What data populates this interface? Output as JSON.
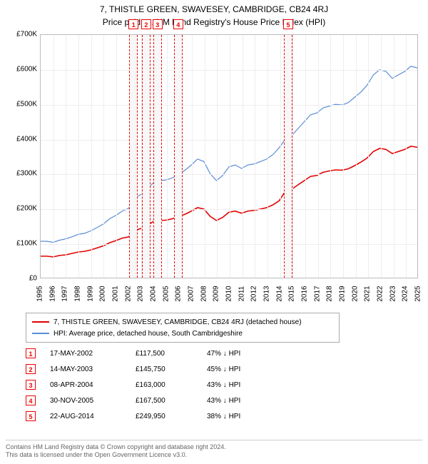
{
  "title": "7, THISTLE GREEN, SWAVESEY, CAMBRIDGE, CB24 4RJ",
  "subtitle": "Price paid vs. HM Land Registry's House Price Index (HPI)",
  "chart": {
    "type": "line",
    "background_color": "#ffffff",
    "grid_color": "#eeeeee",
    "axis_color": "#bbbbbb",
    "x": {
      "min": 1995,
      "max": 2025,
      "tick_step": 1,
      "labels": [
        "1995",
        "1996",
        "1997",
        "1998",
        "1999",
        "2000",
        "2001",
        "2002",
        "2003",
        "2004",
        "2005",
        "2006",
        "2007",
        "2008",
        "2009",
        "2010",
        "2011",
        "2012",
        "2013",
        "2014",
        "2015",
        "2016",
        "2017",
        "2018",
        "2019",
        "2020",
        "2021",
        "2022",
        "2023",
        "2024",
        "2025"
      ]
    },
    "y": {
      "min": 0,
      "max": 700000,
      "tick_step": 100000,
      "labels": [
        "£0",
        "£100K",
        "£200K",
        "£300K",
        "£400K",
        "£500K",
        "£600K",
        "£700K"
      ]
    },
    "series": [
      {
        "name": "HPI: Average price, detached house, South Cambridgeshire",
        "color": "#5b8dd6",
        "width": 1.2,
        "points": [
          [
            1995,
            105000
          ],
          [
            1995.5,
            105000
          ],
          [
            1996,
            102000
          ],
          [
            1996.5,
            108000
          ],
          [
            1997,
            112000
          ],
          [
            1997.5,
            118000
          ],
          [
            1998,
            125000
          ],
          [
            1998.5,
            128000
          ],
          [
            1999,
            135000
          ],
          [
            1999.5,
            145000
          ],
          [
            2000,
            155000
          ],
          [
            2000.5,
            170000
          ],
          [
            2001,
            180000
          ],
          [
            2001.5,
            192000
          ],
          [
            2002,
            200000
          ],
          [
            2002.5,
            230000
          ],
          [
            2003,
            240000
          ],
          [
            2003.5,
            255000
          ],
          [
            2004,
            275000
          ],
          [
            2004.5,
            280000
          ],
          [
            2005,
            282000
          ],
          [
            2005.5,
            288000
          ],
          [
            2006,
            298000
          ],
          [
            2006.5,
            310000
          ],
          [
            2007,
            325000
          ],
          [
            2007.5,
            342000
          ],
          [
            2008,
            335000
          ],
          [
            2008.5,
            300000
          ],
          [
            2009,
            280000
          ],
          [
            2009.5,
            295000
          ],
          [
            2010,
            320000
          ],
          [
            2010.5,
            325000
          ],
          [
            2011,
            315000
          ],
          [
            2011.5,
            325000
          ],
          [
            2012,
            328000
          ],
          [
            2012.5,
            335000
          ],
          [
            2013,
            342000
          ],
          [
            2013.5,
            355000
          ],
          [
            2014,
            375000
          ],
          [
            2014.5,
            400000
          ],
          [
            2015,
            410000
          ],
          [
            2015.5,
            430000
          ],
          [
            2016,
            450000
          ],
          [
            2016.5,
            470000
          ],
          [
            2017,
            475000
          ],
          [
            2017.5,
            490000
          ],
          [
            2018,
            495000
          ],
          [
            2018.5,
            500000
          ],
          [
            2019,
            498000
          ],
          [
            2019.5,
            505000
          ],
          [
            2020,
            520000
          ],
          [
            2020.5,
            535000
          ],
          [
            2021,
            555000
          ],
          [
            2021.5,
            585000
          ],
          [
            2022,
            600000
          ],
          [
            2022.5,
            595000
          ],
          [
            2023,
            575000
          ],
          [
            2023.5,
            585000
          ],
          [
            2024,
            595000
          ],
          [
            2024.5,
            610000
          ],
          [
            2025,
            605000
          ]
        ]
      },
      {
        "name": "7, THISTLE GREEN, SWAVESEY, CAMBRIDGE, CB24 4RJ (detached house)",
        "color": "#e00000",
        "width": 1.6,
        "points": [
          [
            1995,
            62000
          ],
          [
            1995.5,
            62000
          ],
          [
            1996,
            60000
          ],
          [
            1996.5,
            64000
          ],
          [
            1997,
            66000
          ],
          [
            1997.5,
            70000
          ],
          [
            1998,
            74000
          ],
          [
            1998.5,
            76000
          ],
          [
            1999,
            80000
          ],
          [
            1999.5,
            86000
          ],
          [
            2000,
            92000
          ],
          [
            2000.5,
            101000
          ],
          [
            2001,
            107000
          ],
          [
            2001.5,
            114000
          ],
          [
            2002,
            117500
          ],
          [
            2002.5,
            136000
          ],
          [
            2003,
            142000
          ],
          [
            2003.5,
            150000
          ],
          [
            2004,
            163000
          ],
          [
            2004.5,
            165000
          ],
          [
            2005,
            166000
          ],
          [
            2005.5,
            170000
          ],
          [
            2006,
            176000
          ],
          [
            2006.5,
            183000
          ],
          [
            2007,
            192000
          ],
          [
            2007.5,
            202000
          ],
          [
            2008,
            198000
          ],
          [
            2008.5,
            177000
          ],
          [
            2009,
            165000
          ],
          [
            2009.5,
            174000
          ],
          [
            2010,
            189000
          ],
          [
            2010.5,
            192000
          ],
          [
            2011,
            186000
          ],
          [
            2011.5,
            192000
          ],
          [
            2012,
            194000
          ],
          [
            2012.5,
            198000
          ],
          [
            2013,
            202000
          ],
          [
            2013.5,
            210000
          ],
          [
            2014,
            222000
          ],
          [
            2014.5,
            249950
          ],
          [
            2015,
            255000
          ],
          [
            2015.5,
            268000
          ],
          [
            2016,
            280000
          ],
          [
            2016.5,
            292000
          ],
          [
            2017,
            295000
          ],
          [
            2017.5,
            304000
          ],
          [
            2018,
            308000
          ],
          [
            2018.5,
            311000
          ],
          [
            2019,
            310000
          ],
          [
            2019.5,
            314000
          ],
          [
            2020,
            323000
          ],
          [
            2020.5,
            333000
          ],
          [
            2021,
            345000
          ],
          [
            2021.5,
            364000
          ],
          [
            2022,
            373000
          ],
          [
            2022.5,
            370000
          ],
          [
            2023,
            358000
          ],
          [
            2023.5,
            364000
          ],
          [
            2024,
            370000
          ],
          [
            2024.5,
            379000
          ],
          [
            2025,
            376000
          ]
        ]
      }
    ],
    "markers": [
      {
        "x": 2002.37,
        "y": 117500,
        "color": "#e00000"
      },
      {
        "x": 2003.37,
        "y": 145750,
        "color": "#e00000"
      },
      {
        "x": 2004.27,
        "y": 163000,
        "color": "#e00000"
      },
      {
        "x": 2005.91,
        "y": 167500,
        "color": "#e00000"
      },
      {
        "x": 2014.64,
        "y": 249950,
        "color": "#e00000"
      }
    ],
    "transaction_bands": [
      {
        "num": "1",
        "x": 2002.37
      },
      {
        "num": "2",
        "x": 2003.37
      },
      {
        "num": "3",
        "x": 2004.27
      },
      {
        "num": "4",
        "x": 2005.91
      },
      {
        "num": "5",
        "x": 2014.64
      }
    ],
    "band_half_width": 0.35,
    "band_fill": "#f7f7f7",
    "band_border": "#e00000"
  },
  "legend": [
    {
      "color": "#e00000",
      "label": "7, THISTLE GREEN, SWAVESEY, CAMBRIDGE, CB24 4RJ (detached house)"
    },
    {
      "color": "#5b8dd6",
      "label": "HPI: Average price, detached house, South Cambridgeshire"
    }
  ],
  "transactions": [
    {
      "num": "1",
      "date": "17-MAY-2002",
      "price": "£117,500",
      "diff": "47% ↓ HPI"
    },
    {
      "num": "2",
      "date": "14-MAY-2003",
      "price": "£145,750",
      "diff": "45% ↓ HPI"
    },
    {
      "num": "3",
      "date": "08-APR-2004",
      "price": "£163,000",
      "diff": "43% ↓ HPI"
    },
    {
      "num": "4",
      "date": "30-NOV-2005",
      "price": "£167,500",
      "diff": "43% ↓ HPI"
    },
    {
      "num": "5",
      "date": "22-AUG-2014",
      "price": "£249,950",
      "diff": "38% ↓ HPI"
    }
  ],
  "footer_line1": "Contains HM Land Registry data © Crown copyright and database right 2024.",
  "footer_line2": "This data is licensed under the Open Government Licence v3.0."
}
